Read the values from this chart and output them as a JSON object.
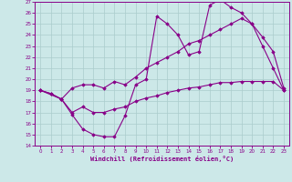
{
  "xlabel": "Windchill (Refroidissement éolien,°C)",
  "xlim": [
    -0.5,
    23.5
  ],
  "ylim": [
    14,
    27
  ],
  "xticks": [
    0,
    1,
    2,
    3,
    4,
    5,
    6,
    7,
    8,
    9,
    10,
    11,
    12,
    13,
    14,
    15,
    16,
    17,
    18,
    19,
    20,
    21,
    22,
    23
  ],
  "yticks": [
    14,
    15,
    16,
    17,
    18,
    19,
    20,
    21,
    22,
    23,
    24,
    25,
    26,
    27
  ],
  "background_color": "#cce8e8",
  "grid_color": "#aacccc",
  "line_color": "#880088",
  "line1_x": [
    0,
    1,
    2,
    3,
    4,
    5,
    6,
    7,
    8,
    9,
    10,
    11,
    12,
    13,
    14,
    15,
    16,
    17,
    18,
    19,
    20,
    21,
    22,
    23
  ],
  "line1_y": [
    19.0,
    18.7,
    18.2,
    16.8,
    15.5,
    15.0,
    14.8,
    14.8,
    16.7,
    19.5,
    20.0,
    25.7,
    25.0,
    24.0,
    22.2,
    22.5,
    26.7,
    27.2,
    26.5,
    26.0,
    25.0,
    23.0,
    21.0,
    19.0
  ],
  "line2_x": [
    0,
    2,
    3,
    4,
    5,
    6,
    7,
    8,
    9,
    10,
    11,
    12,
    13,
    14,
    15,
    16,
    17,
    18,
    19,
    20,
    21,
    22,
    23
  ],
  "line2_y": [
    19.0,
    18.2,
    19.2,
    19.5,
    19.5,
    19.2,
    19.8,
    19.5,
    20.2,
    21.0,
    21.5,
    22.0,
    22.5,
    23.2,
    23.5,
    24.0,
    24.5,
    25.0,
    25.5,
    25.0,
    23.8,
    22.5,
    19.2
  ],
  "line3_x": [
    0,
    1,
    2,
    3,
    4,
    5,
    6,
    7,
    8,
    9,
    10,
    11,
    12,
    13,
    14,
    15,
    16,
    17,
    18,
    19,
    20,
    21,
    22,
    23
  ],
  "line3_y": [
    19.0,
    18.7,
    18.2,
    17.0,
    17.5,
    17.0,
    17.0,
    17.3,
    17.5,
    18.0,
    18.3,
    18.5,
    18.8,
    19.0,
    19.2,
    19.3,
    19.5,
    19.7,
    19.7,
    19.8,
    19.8,
    19.8,
    19.8,
    19.0
  ]
}
